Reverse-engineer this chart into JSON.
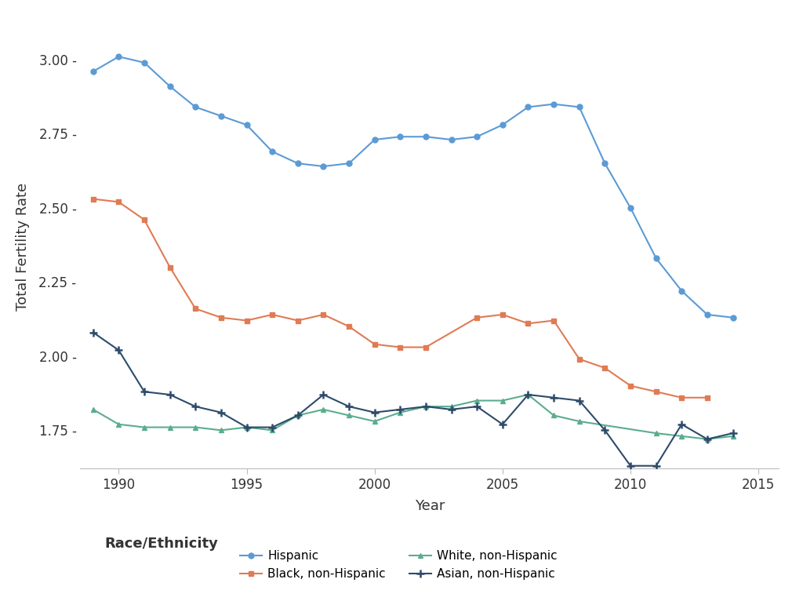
{
  "hispanic": {
    "years": [
      1989,
      1990,
      1991,
      1992,
      1993,
      1994,
      1995,
      1996,
      1997,
      1998,
      1999,
      2000,
      2001,
      2002,
      2003,
      2004,
      2005,
      2006,
      2007,
      2008,
      2009,
      2010,
      2011,
      2012,
      2013,
      2014
    ],
    "values": [
      2.96,
      3.01,
      2.99,
      2.91,
      2.84,
      2.81,
      2.78,
      2.69,
      2.65,
      2.64,
      2.65,
      2.73,
      2.74,
      2.74,
      2.73,
      2.74,
      2.78,
      2.84,
      2.85,
      2.84,
      2.65,
      2.5,
      2.33,
      2.22,
      2.14,
      2.13
    ],
    "color": "#5B9BD5",
    "marker": "o"
  },
  "black": {
    "years": [
      1989,
      1990,
      1991,
      1992,
      1993,
      1994,
      1995,
      1996,
      1997,
      1998,
      1999,
      2000,
      2001,
      2002,
      2004,
      2005,
      2006,
      2007,
      2008,
      2009,
      2010,
      2011,
      2012,
      2013
    ],
    "values": [
      2.53,
      2.52,
      2.46,
      2.3,
      2.16,
      2.13,
      2.12,
      2.14,
      2.12,
      2.14,
      2.1,
      2.04,
      2.03,
      2.03,
      2.13,
      2.14,
      2.11,
      2.12,
      1.99,
      1.96,
      1.9,
      1.88,
      1.86,
      1.86
    ],
    "color": "#E07B54",
    "marker": "s"
  },
  "white": {
    "years": [
      1989,
      1990,
      1991,
      1992,
      1993,
      1994,
      1995,
      1996,
      1997,
      1998,
      1999,
      2000,
      2001,
      2002,
      2003,
      2004,
      2005,
      2006,
      2007,
      2008,
      2011,
      2012,
      2013,
      2014
    ],
    "values": [
      1.82,
      1.77,
      1.76,
      1.76,
      1.76,
      1.75,
      1.76,
      1.75,
      1.8,
      1.82,
      1.8,
      1.78,
      1.81,
      1.83,
      1.83,
      1.85,
      1.85,
      1.87,
      1.8,
      1.78,
      1.74,
      1.73,
      1.72,
      1.73
    ],
    "color": "#5BAD8F",
    "marker": "^"
  },
  "asian": {
    "years": [
      1989,
      1990,
      1991,
      1992,
      1993,
      1994,
      1995,
      1996,
      1997,
      1998,
      1999,
      2000,
      2001,
      2002,
      2003,
      2004,
      2005,
      2006,
      2007,
      2008,
      2009,
      2010,
      2011,
      2012,
      2013,
      2014
    ],
    "values": [
      2.08,
      2.02,
      1.88,
      1.87,
      1.83,
      1.81,
      1.76,
      1.76,
      1.8,
      1.87,
      1.83,
      1.81,
      1.82,
      1.83,
      1.82,
      1.83,
      1.77,
      1.87,
      1.86,
      1.85,
      1.75,
      1.63,
      1.63,
      1.77,
      1.72,
      1.74
    ],
    "color": "#2D4B6B",
    "marker": "+"
  },
  "xlabel": "Year",
  "ylabel": "Total Fertility Rate",
  "legend_title": "Race/Ethnicity",
  "ylim": [
    1.62,
    3.12
  ],
  "xlim": [
    1988.5,
    2015.8
  ],
  "yticks": [
    1.75,
    2.0,
    2.25,
    2.5,
    2.75,
    3.0
  ],
  "xticks": [
    1990,
    1995,
    2000,
    2005,
    2010,
    2015
  ]
}
